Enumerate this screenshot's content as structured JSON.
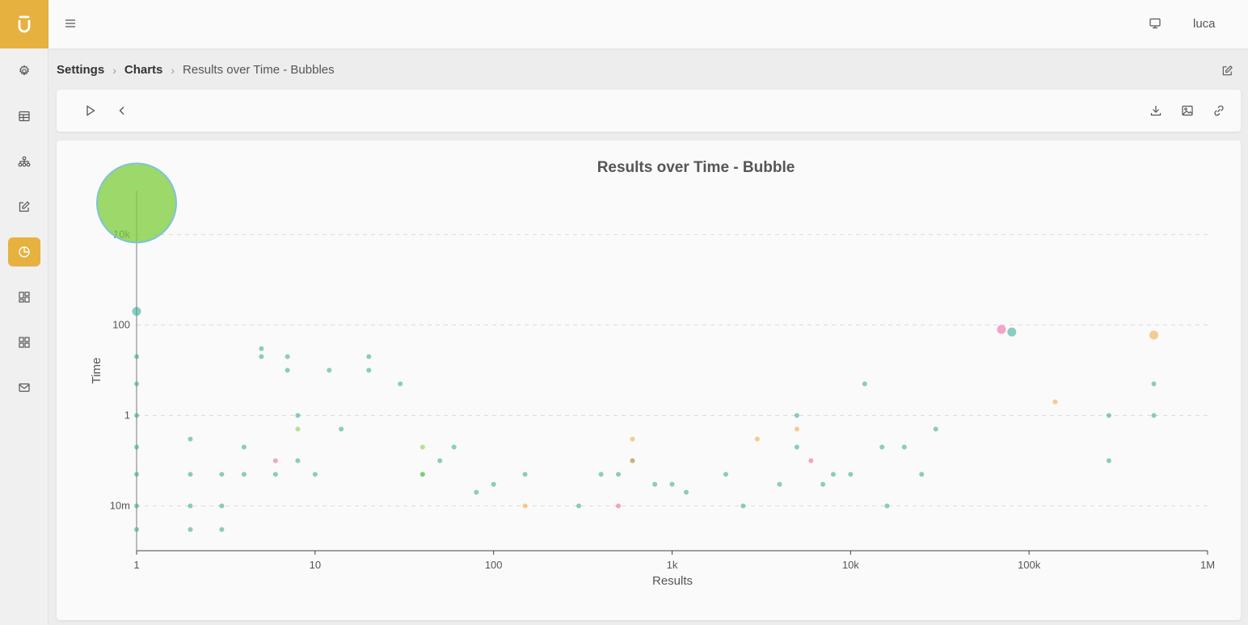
{
  "app": {
    "logo_icon": "app-logo-icon",
    "accent_color": "#e6b13f"
  },
  "sidebar": {
    "items": [
      {
        "icon": "settings-icon",
        "active": false
      },
      {
        "icon": "table-icon",
        "active": false
      },
      {
        "icon": "hierarchy-icon",
        "active": false
      },
      {
        "icon": "edit-icon",
        "active": false
      },
      {
        "icon": "pie-chart-icon",
        "active": true
      },
      {
        "icon": "dashboard-icon",
        "active": false
      },
      {
        "icon": "grid-icon",
        "active": false
      },
      {
        "icon": "mail-icon",
        "active": false
      }
    ]
  },
  "topbar": {
    "user": "luca"
  },
  "breadcrumb": {
    "item1": "Settings",
    "item2": "Charts",
    "current": "Results over Time - Bubbles"
  },
  "toolbar": {
    "left_icons": [
      "play-icon",
      "chevron-left-icon"
    ],
    "right_icons": [
      "download-icon",
      "image-icon",
      "link-icon"
    ]
  },
  "chart_data": {
    "type": "scatter",
    "title": "Results over Time - Bubble",
    "xlabel": "Results",
    "ylabel": "Time",
    "xscale": "log",
    "yscale": "log",
    "xlim": [
      1,
      1000000
    ],
    "ylim": [
      0.003,
      100000
    ],
    "x_ticks": [
      "1",
      "10",
      "100",
      "1k",
      "10k",
      "100k",
      "1M"
    ],
    "y_ticks": [
      "10m",
      "1",
      "100",
      "10k"
    ],
    "grid": "horizontal dashed",
    "colors": [
      "#2ea58b",
      "#7ccc3a",
      "#f3a43b",
      "#ef5ba1",
      "#f9d86a",
      "#7b6fb0"
    ],
    "series": [
      {
        "color": "#2ea58b",
        "points": [
          [
            1,
            0.003
          ],
          [
            1,
            0.01
          ],
          [
            1,
            0.05
          ],
          [
            1,
            0.2
          ],
          [
            1,
            1
          ],
          [
            1,
            5
          ],
          [
            1,
            20
          ],
          [
            1,
            200
          ],
          [
            2,
            0.003
          ],
          [
            2,
            0.01
          ],
          [
            2,
            0.05
          ],
          [
            2,
            0.3
          ],
          [
            3,
            0.003
          ],
          [
            3,
            0.01
          ],
          [
            3,
            0.05
          ],
          [
            4,
            0.05
          ],
          [
            4,
            0.2
          ],
          [
            5,
            20
          ],
          [
            5,
            30
          ],
          [
            6,
            0.05
          ],
          [
            7,
            10
          ],
          [
            7,
            20
          ],
          [
            8,
            0.1
          ],
          [
            8,
            1
          ],
          [
            10,
            0.05
          ],
          [
            12,
            10
          ],
          [
            14,
            0.5
          ],
          [
            20,
            10
          ],
          [
            20,
            20
          ],
          [
            30,
            5
          ],
          [
            40,
            0.05
          ],
          [
            50,
            0.1
          ],
          [
            60,
            0.2
          ],
          [
            80,
            0.02
          ],
          [
            100,
            0.03
          ],
          [
            150,
            0.05
          ],
          [
            300,
            0.01
          ],
          [
            400,
            0.05
          ],
          [
            500,
            0.05
          ],
          [
            600,
            0.1
          ],
          [
            800,
            0.03
          ],
          [
            1000,
            0.03
          ],
          [
            1200,
            0.02
          ],
          [
            2000,
            0.05
          ],
          [
            2500,
            0.01
          ],
          [
            4000,
            0.03
          ],
          [
            5000,
            0.2
          ],
          [
            5000,
            1
          ],
          [
            7000,
            0.03
          ],
          [
            8000,
            0.05
          ],
          [
            10000,
            0.05
          ],
          [
            12000,
            5
          ],
          [
            15000,
            0.2
          ],
          [
            16000,
            0.01
          ],
          [
            20000,
            0.2
          ],
          [
            25000,
            0.05
          ],
          [
            30000,
            0.5
          ],
          [
            80000,
            70
          ],
          [
            280000,
            0.1
          ],
          [
            280000,
            1
          ],
          [
            500000,
            5
          ],
          [
            500000,
            1
          ]
        ]
      },
      {
        "color": "#7ccc3a",
        "points": [
          [
            1,
            50000
          ],
          [
            40,
            0.05
          ],
          [
            40,
            0.2
          ],
          [
            8,
            0.5
          ]
        ]
      },
      {
        "color": "#f3a43b",
        "points": [
          [
            600,
            0.3
          ],
          [
            600,
            0.1
          ],
          [
            3000,
            0.3
          ],
          [
            5000,
            0.5
          ],
          [
            140000,
            2
          ],
          [
            500000,
            60
          ],
          [
            150,
            0.01
          ]
        ]
      },
      {
        "color": "#ef5ba1",
        "points": [
          [
            70000,
            80
          ],
          [
            6000,
            0.1
          ],
          [
            500,
            0.01
          ],
          [
            6,
            0.1
          ]
        ]
      }
    ]
  }
}
